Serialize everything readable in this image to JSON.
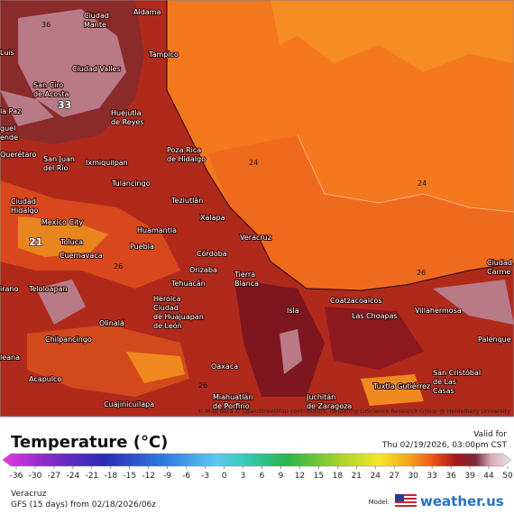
{
  "map": {
    "attribution": "© Map data © OpenStreetMap contributors, rendering GIScience Research Group @ Heidelberg University",
    "cities": [
      {
        "lines": [
          "Ciudad",
          "Mante"
        ]
      },
      {
        "lines": [
          "Aldama"
        ]
      },
      {
        "lines": [
          "Tampico"
        ]
      },
      {
        "lines": [
          "Ciudad Valles"
        ]
      },
      {
        "lines": [
          "Luis"
        ]
      },
      {
        "lines": [
          "San Ciro",
          "de Acosta"
        ]
      },
      {
        "lines": [
          "la Paz"
        ]
      },
      {
        "lines": [
          "Huejutla",
          "de Reyes"
        ]
      },
      {
        "lines": [
          "guel",
          "ende"
        ]
      },
      {
        "lines": [
          "Querétaro"
        ]
      },
      {
        "lines": [
          "San Juan",
          "del Río"
        ]
      },
      {
        "lines": [
          "Ixmiquilpan"
        ]
      },
      {
        "lines": [
          "Poza Rica",
          "de Hidalgo"
        ]
      },
      {
        "lines": [
          "Tulancingo"
        ]
      },
      {
        "lines": [
          "Ciudad",
          "Hidalgo"
        ]
      },
      {
        "lines": [
          "Teziutlán"
        ]
      },
      {
        "lines": [
          "Xalapa"
        ]
      },
      {
        "lines": [
          "Mexico City"
        ]
      },
      {
        "lines": [
          "Huamantla"
        ]
      },
      {
        "lines": [
          "Veracruz"
        ]
      },
      {
        "lines": [
          "Toluca"
        ]
      },
      {
        "lines": [
          "Puebla"
        ]
      },
      {
        "lines": [
          "Cuernavaca"
        ]
      },
      {
        "lines": [
          "Córdoba"
        ]
      },
      {
        "lines": [
          "Orizaba"
        ]
      },
      {
        "lines": [
          "Tierra",
          "Blanca"
        ]
      },
      {
        "lines": [
          "Tehuacán"
        ]
      },
      {
        "lines": [
          "Teloloapan"
        ]
      },
      {
        "lines": [
          "irano"
        ]
      },
      {
        "lines": [
          "Heroica",
          "Ciudad",
          "de Huajuapan",
          "de León"
        ]
      },
      {
        "lines": [
          "Coatzacoalcos"
        ]
      },
      {
        "lines": [
          "Las Choapas"
        ]
      },
      {
        "lines": [
          "Villahermosa"
        ]
      },
      {
        "lines": [
          "Isla"
        ]
      },
      {
        "lines": [
          "Ciudad",
          "Carme"
        ]
      },
      {
        "lines": [
          "Olinalá"
        ]
      },
      {
        "lines": [
          "Chilpancingo"
        ]
      },
      {
        "lines": [
          "Palenque"
        ]
      },
      {
        "lines": [
          "leana"
        ]
      },
      {
        "lines": [
          "Acapulco"
        ]
      },
      {
        "lines": [
          "Oaxaca"
        ]
      },
      {
        "lines": [
          "San Cristóbal",
          "de Las",
          "Casas"
        ]
      },
      {
        "lines": [
          "Tuxtla Gutiérrez"
        ]
      },
      {
        "lines": [
          "Miahuatlán",
          "de Porfirio"
        ]
      },
      {
        "lines": [
          "Juchitán",
          "de Zaragoza"
        ]
      },
      {
        "lines": [
          "Cuajinicuilapa"
        ]
      }
    ],
    "contour_labels": [
      "36",
      "33",
      "21",
      "24",
      "24",
      "26",
      "26",
      "26"
    ]
  },
  "legend": {
    "title": "Temperature (°C)",
    "valid_label": "Valid for",
    "valid_time": "Thu 02/19/2026, 03:00pm CST",
    "ticks": [
      -36,
      -30,
      -27,
      -24,
      -21,
      -18,
      -15,
      -12,
      -9,
      -6,
      -3,
      0,
      3,
      6,
      9,
      12,
      15,
      18,
      21,
      24,
      27,
      30,
      33,
      36,
      39,
      44,
      50
    ]
  },
  "footer": {
    "location": "Veracruz",
    "model_run": "GFS (15 days) from  02/18/2026/06z",
    "model_label": "Model:",
    "brand": "weather.us"
  }
}
